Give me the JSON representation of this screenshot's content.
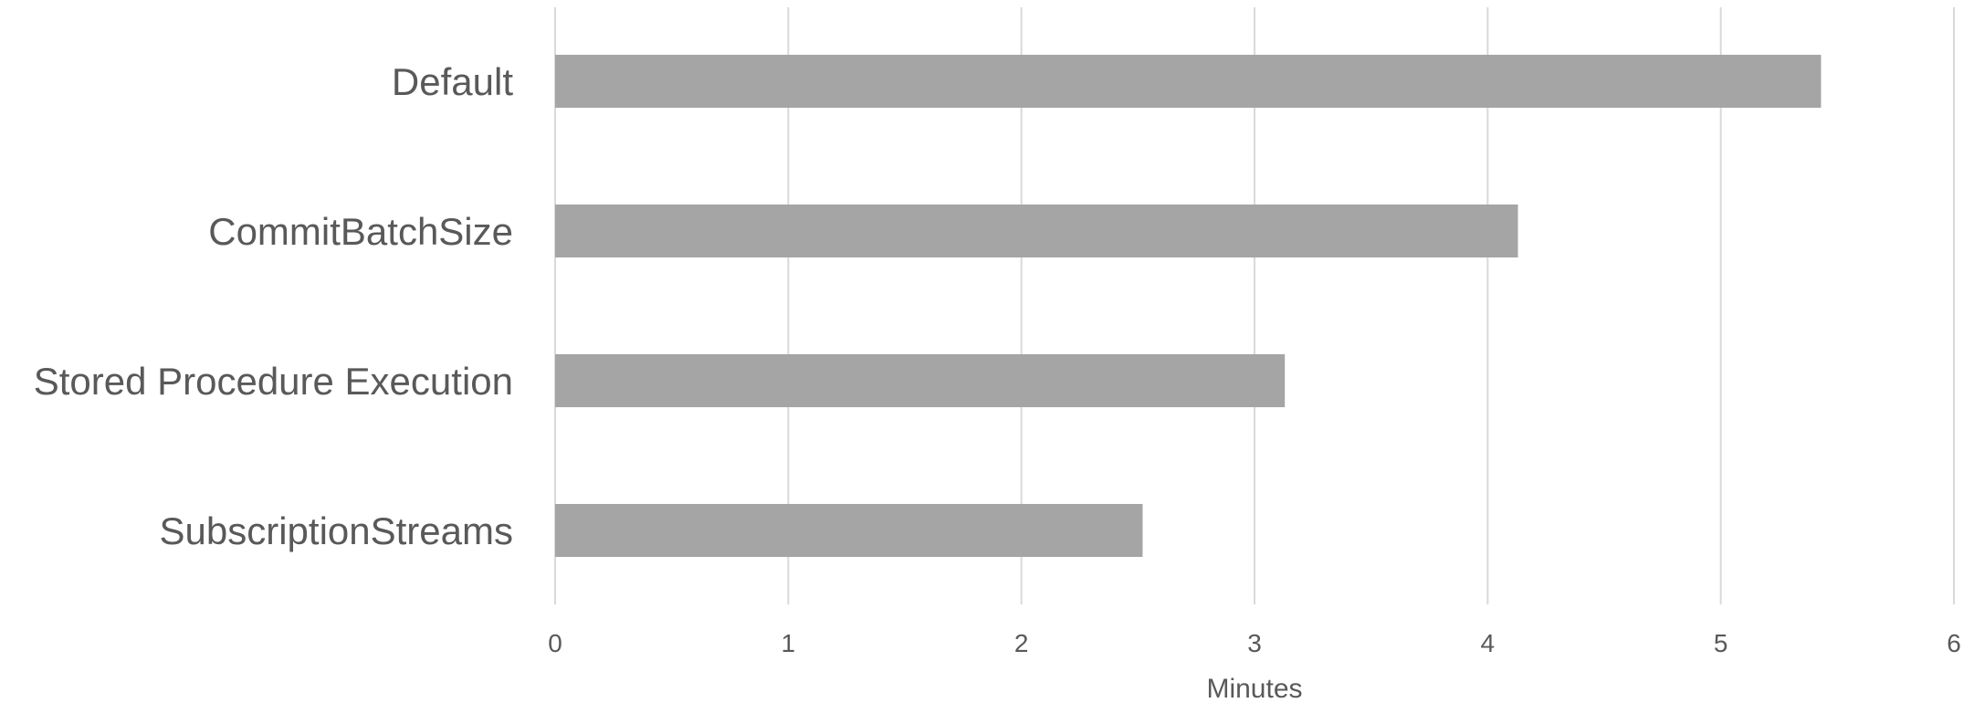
{
  "chart_data": {
    "type": "bar",
    "orientation": "horizontal",
    "title": "",
    "categories": [
      "Default",
      "CommitBatchSize",
      "Stored Procedure Execution",
      "SubscriptionStreams"
    ],
    "series": [
      {
        "values": [
          5.43,
          4.13,
          3.13,
          2.52
        ]
      }
    ],
    "xlabel": "Minutes",
    "ylabel": "",
    "xlim": [
      0,
      6
    ],
    "xticks": [
      0,
      1,
      2,
      3,
      4,
      5,
      6
    ],
    "grid": "vertical",
    "legend": "none",
    "colors": {
      "bar": "#a5a5a5",
      "grid": "#d9d9d9",
      "text": "#595959"
    }
  }
}
